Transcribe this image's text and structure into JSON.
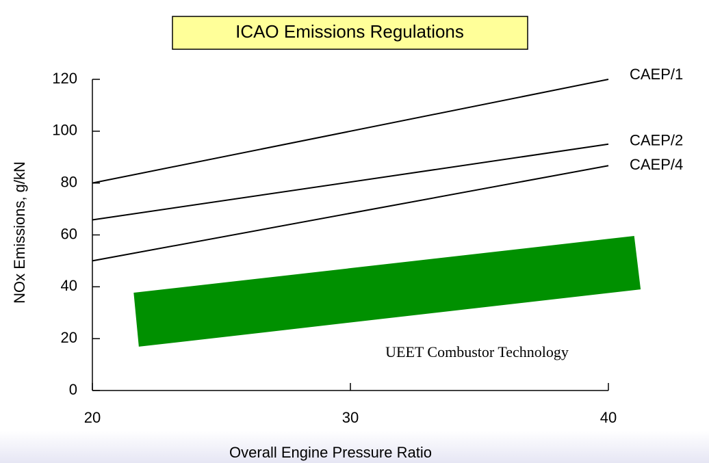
{
  "chart_data": {
    "type": "line",
    "title": "ICAO Emissions Regulations",
    "x_label": "Overall Engine Pressure Ratio",
    "y_label": "NOx Emissions, g/kN",
    "x": [
      20,
      40
    ],
    "series": [
      {
        "name": "CAEP/1",
        "color": "#000000",
        "values": [
          80,
          120
        ]
      },
      {
        "name": "CAEP/2",
        "color": "#000000",
        "values": [
          65.8,
          95
        ]
      },
      {
        "name": "CAEP/4",
        "color": "#000000",
        "values": [
          50,
          86.7
        ]
      }
    ],
    "band": {
      "name": "UEET Combustor Technology",
      "color": "#009000",
      "x": [
        21.6,
        41.0,
        41.25,
        21.8
      ],
      "y": [
        37.7,
        59.6,
        39.0,
        16.9
      ]
    },
    "xlim": [
      20,
      40
    ],
    "ylim": [
      0,
      120
    ],
    "xticks": [
      20,
      30,
      40
    ],
    "yticks": [
      0,
      20,
      40,
      60,
      80,
      100,
      120
    ]
  }
}
